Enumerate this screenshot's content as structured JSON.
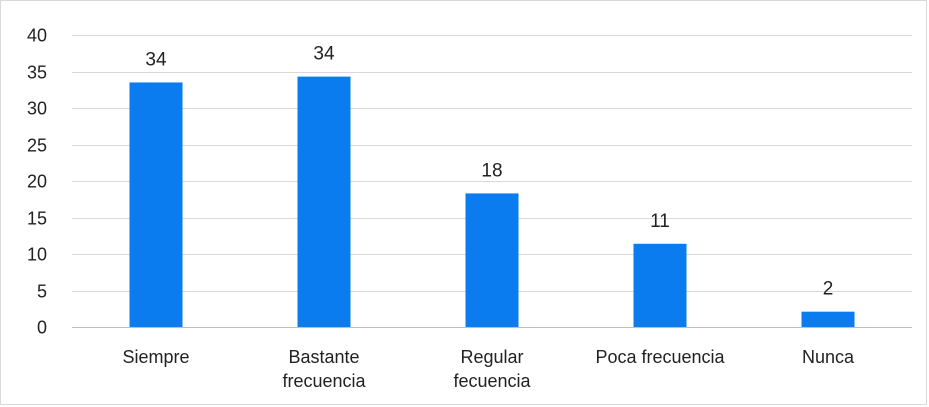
{
  "chart_data": {
    "type": "bar",
    "categories": [
      "Siempre",
      "Bastante frecuencia",
      "Regular fecuencia",
      "Poca frecuencia",
      "Nunca"
    ],
    "category_lines": [
      [
        "Siempre"
      ],
      [
        "Bastante",
        "frecuencia"
      ],
      [
        "Regular",
        "fecuencia"
      ],
      [
        "Poca frecuencia"
      ],
      [
        "Nunca"
      ]
    ],
    "values": [
      33.5,
      34.3,
      18.3,
      11.4,
      2.1
    ],
    "data_labels": [
      "34",
      "34",
      "18",
      "11",
      "2"
    ],
    "ylim": [
      0,
      40
    ],
    "yticks": [
      0,
      5,
      10,
      15,
      20,
      25,
      30,
      35,
      40
    ],
    "grid": true,
    "legend": "none",
    "bar_color": "#0a7cf0",
    "title": "",
    "xlabel": "",
    "ylabel": ""
  }
}
